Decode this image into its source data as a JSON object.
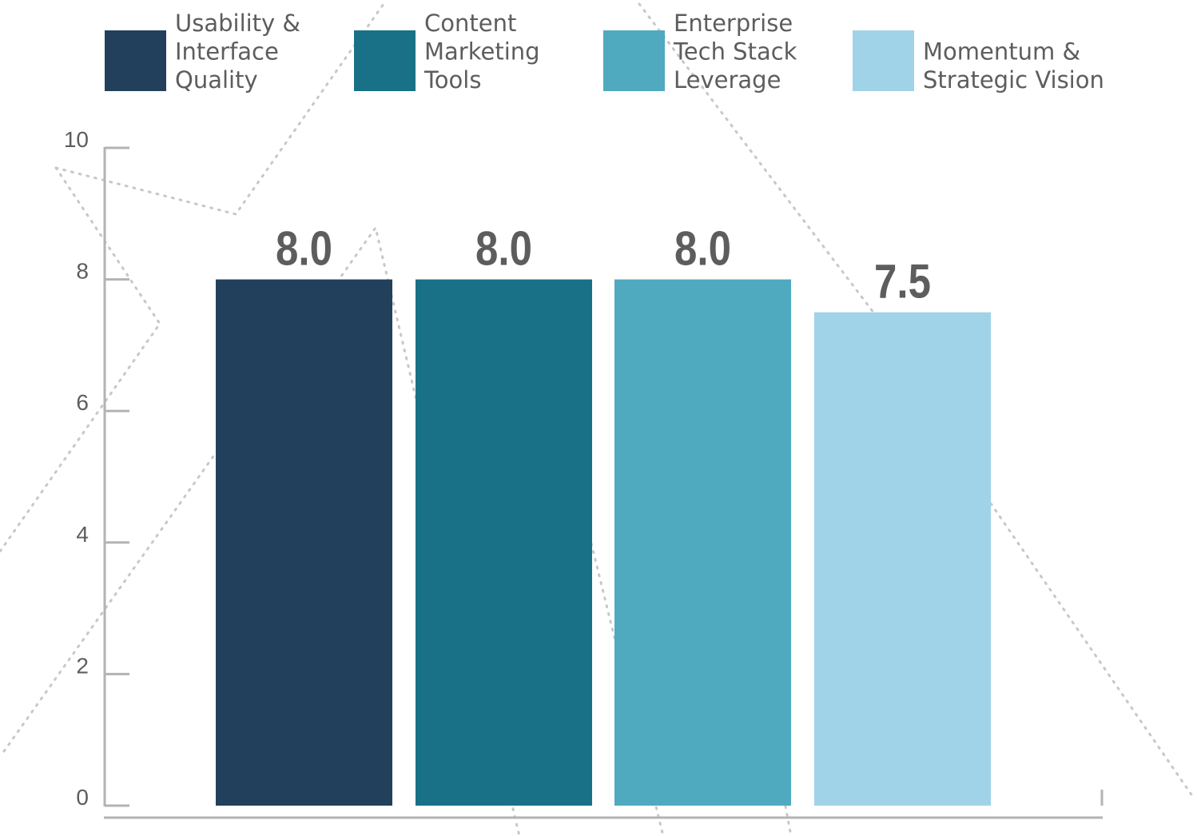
{
  "chart_data": {
    "type": "bar",
    "categories": [
      [
        "Usability &",
        "Interface",
        "Quality"
      ],
      [
        "Content",
        "Marketing",
        "Tools"
      ],
      [
        "Enterprise",
        "Tech Stack",
        "Leverage"
      ],
      [
        "Momentum &",
        "Strategic Vision"
      ]
    ],
    "values": [
      8.0,
      8.0,
      8.0,
      7.5
    ],
    "value_labels": [
      "8.0",
      "8.0",
      "8.0",
      "7.5"
    ],
    "colors": [
      "#22405c",
      "#187187",
      "#4fa9bf",
      "#a0d3e7"
    ],
    "ylim": [
      0,
      10
    ],
    "yticks": [
      0,
      2,
      4,
      6,
      8,
      10
    ],
    "ytick_labels": [
      "0",
      "2",
      "4",
      "6",
      "8",
      "10"
    ],
    "legend_position": "top",
    "grid": false,
    "title": "",
    "xlabel": "",
    "ylabel": ""
  }
}
